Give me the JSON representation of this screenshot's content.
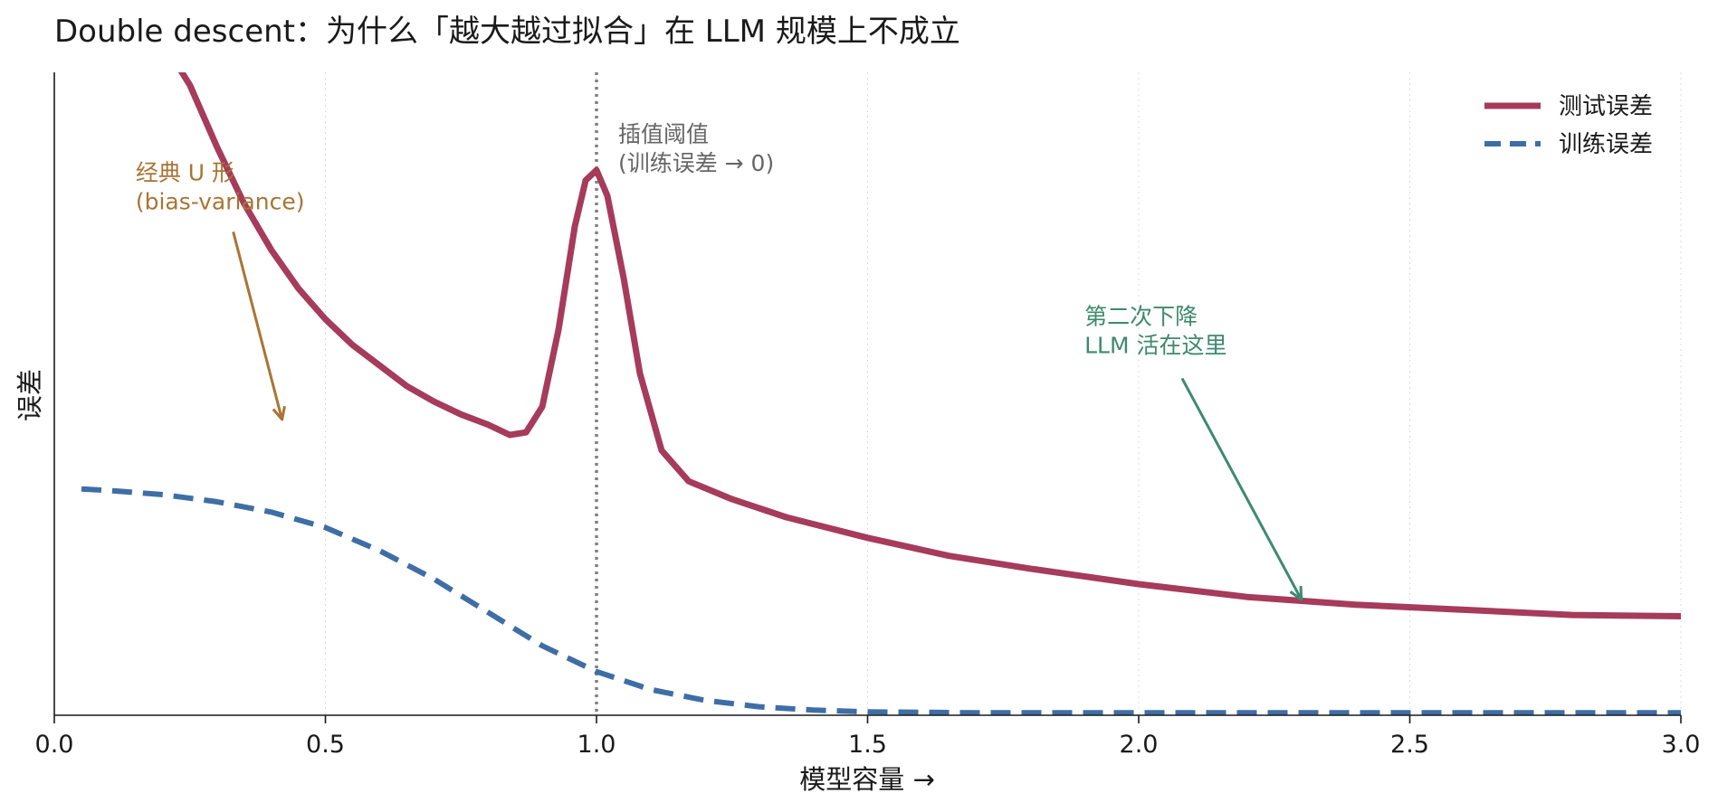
{
  "chart_data": {
    "type": "line",
    "title": "Double descent：为什么「越大越过拟合」在 LLM 规模上不成立",
    "xlabel": "模型容量 →",
    "ylabel": "误差",
    "xlim": [
      0.0,
      3.0
    ],
    "ylim": [
      0.0,
      2.5
    ],
    "x_ticks": [
      "0.0",
      "0.5",
      "1.0",
      "1.5",
      "2.0",
      "2.5",
      "3.0"
    ],
    "y_ticks_shown": false,
    "grid": "vertical dotted",
    "legend_placement": "top-right",
    "series": [
      {
        "name": "测试误差",
        "color": "#a63b5b",
        "style": "solid",
        "points": [
          [
            0.2,
            2.62
          ],
          [
            0.25,
            2.45
          ],
          [
            0.3,
            2.21
          ],
          [
            0.35,
            1.99
          ],
          [
            0.4,
            1.81
          ],
          [
            0.45,
            1.66
          ],
          [
            0.5,
            1.54
          ],
          [
            0.55,
            1.44
          ],
          [
            0.6,
            1.36
          ],
          [
            0.65,
            1.28
          ],
          [
            0.7,
            1.22
          ],
          [
            0.75,
            1.17
          ],
          [
            0.8,
            1.13
          ],
          [
            0.84,
            1.09
          ],
          [
            0.87,
            1.1
          ],
          [
            0.9,
            1.2
          ],
          [
            0.93,
            1.5
          ],
          [
            0.96,
            1.9
          ],
          [
            0.98,
            2.08
          ],
          [
            0.99,
            2.1
          ],
          [
            1.0,
            2.12
          ],
          [
            1.02,
            2.02
          ],
          [
            1.05,
            1.7
          ],
          [
            1.08,
            1.33
          ],
          [
            1.12,
            1.03
          ],
          [
            1.17,
            0.91
          ],
          [
            1.25,
            0.84
          ],
          [
            1.35,
            0.77
          ],
          [
            1.5,
            0.69
          ],
          [
            1.65,
            0.62
          ],
          [
            1.8,
            0.57
          ],
          [
            2.0,
            0.51
          ],
          [
            2.2,
            0.46
          ],
          [
            2.4,
            0.43
          ],
          [
            2.6,
            0.41
          ],
          [
            2.8,
            0.39
          ],
          [
            3.0,
            0.385
          ]
        ]
      },
      {
        "name": "训练误差",
        "color": "#3e6ea6",
        "style": "dashed",
        "points": [
          [
            0.05,
            0.88
          ],
          [
            0.1,
            0.874
          ],
          [
            0.2,
            0.858
          ],
          [
            0.3,
            0.83
          ],
          [
            0.4,
            0.79
          ],
          [
            0.5,
            0.73
          ],
          [
            0.6,
            0.64
          ],
          [
            0.7,
            0.53
          ],
          [
            0.8,
            0.4
          ],
          [
            0.9,
            0.27
          ],
          [
            1.0,
            0.17
          ],
          [
            1.1,
            0.1
          ],
          [
            1.2,
            0.058
          ],
          [
            1.3,
            0.033
          ],
          [
            1.4,
            0.02
          ],
          [
            1.5,
            0.013
          ],
          [
            1.7,
            0.01
          ],
          [
            2.0,
            0.01
          ],
          [
            2.5,
            0.01
          ],
          [
            3.0,
            0.01
          ]
        ]
      }
    ],
    "reference_lines": [
      {
        "orientation": "vertical",
        "x": 1.0,
        "color": "#808080",
        "style": "dotted"
      }
    ],
    "annotations": [
      {
        "id": "interp",
        "lines": [
          "插值阈值",
          "(训练误差 → 0)"
        ],
        "color": "#666666",
        "text_at": [
          1.04,
          2.23
        ],
        "arrow": false
      },
      {
        "id": "classic",
        "lines": [
          "经典 U 形",
          "(bias-variance)"
        ],
        "color": "#a87534",
        "text_at": [
          0.15,
          2.08
        ],
        "arrow_from": [
          0.33,
          1.88
        ],
        "arrow_to": [
          0.42,
          1.15
        ]
      },
      {
        "id": "second",
        "lines": [
          "第二次下降",
          "LLM 活在这里"
        ],
        "color": "#3e8a6e",
        "text_at": [
          1.9,
          1.52
        ],
        "arrow_from": [
          2.08,
          1.31
        ],
        "arrow_to": [
          2.3,
          0.45
        ]
      }
    ]
  }
}
